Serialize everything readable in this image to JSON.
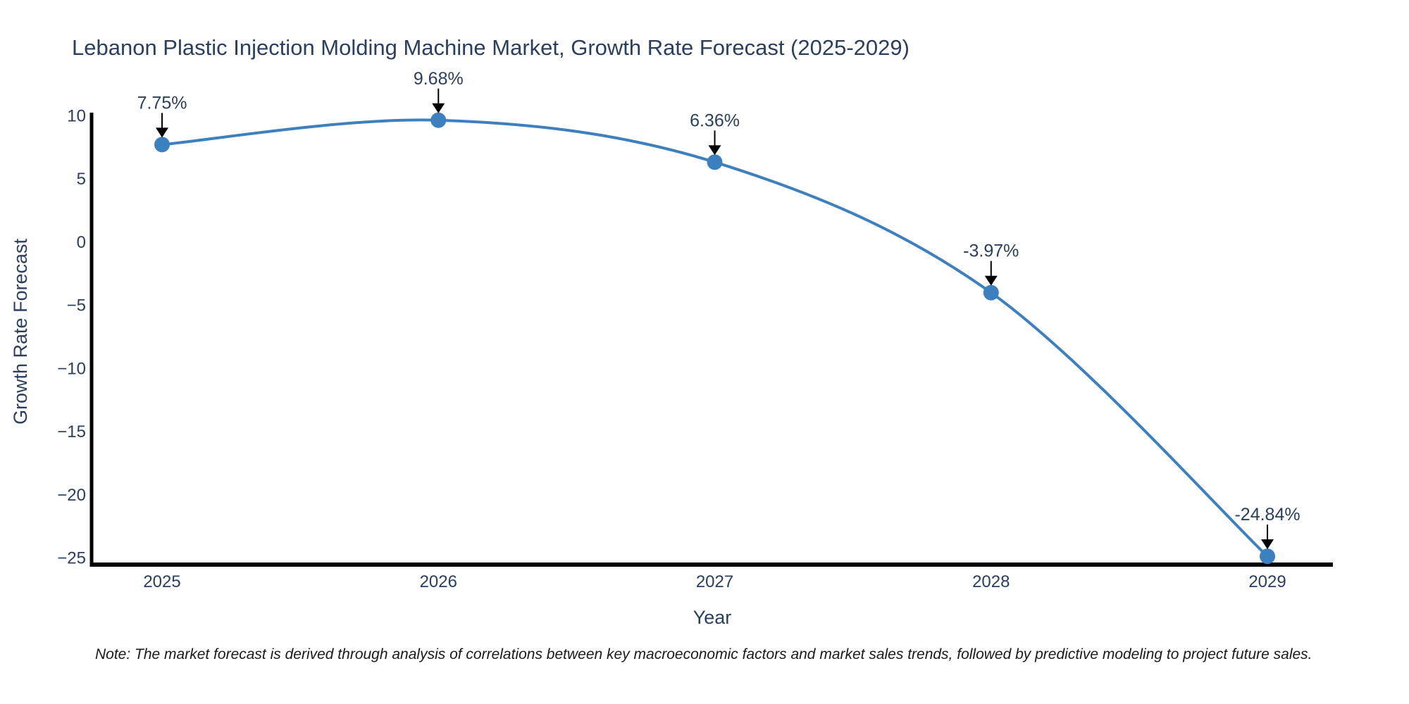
{
  "chart_data": {
    "type": "line",
    "title": "Lebanon Plastic Injection Molding Machine Market, Growth Rate Forecast (2025-2029)",
    "xlabel": "Year",
    "ylabel": "Growth Rate Forecast",
    "x": [
      2025,
      2026,
      2027,
      2028,
      2029
    ],
    "values": [
      7.75,
      9.68,
      6.36,
      -3.97,
      -24.84
    ],
    "point_labels": [
      "7.75%",
      "9.68%",
      "6.36%",
      "-3.97%",
      "-24.84%"
    ],
    "x_tick_labels": [
      "2025",
      "2026",
      "2027",
      "2028",
      "2029"
    ],
    "y_tick_values": [
      10,
      5,
      0,
      -5,
      -10,
      -15,
      -20,
      -25
    ],
    "y_tick_labels": [
      "10",
      "5",
      "0",
      "−5",
      "−10",
      "−15",
      "−20",
      "−25"
    ],
    "xlim": [
      2024.745,
      2029.237
    ],
    "ylim": [
      -25.5,
      10.28
    ],
    "line_shape": "spline",
    "grid": false,
    "legend": "none",
    "colors": {
      "line": "#3c80c0",
      "marker": "#3c80c0",
      "axis": "#000000",
      "text": "#2a3f5f",
      "arrow": "#000000"
    },
    "note": "Note: The market forecast is derived through analysis of correlations between key macroeconomic factors and market sales trends, followed by predictive modeling to project future sales."
  }
}
